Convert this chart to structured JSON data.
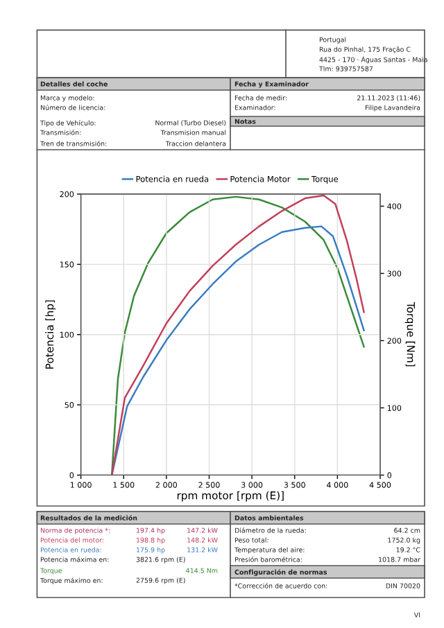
{
  "chart_data": {
    "type": "line",
    "xlabel": "rpm motor [rpm (E)]",
    "ylabel": "Potencia [hp]",
    "y2label": "Torque [Nm]",
    "xlim": [
      1000,
      4500
    ],
    "xticks": [
      {
        "value": 1000,
        "label": "1 000"
      },
      {
        "value": 1500,
        "label": "1 500"
      },
      {
        "value": 2000,
        "label": "2 000"
      },
      {
        "value": 2500,
        "label": "2 500"
      },
      {
        "value": 3000,
        "label": "3 000"
      },
      {
        "value": 3500,
        "label": "3 500"
      },
      {
        "value": 4000,
        "label": "4 000"
      },
      {
        "value": 4500,
        "label": "4 500"
      }
    ],
    "ylim": [
      0,
      200
    ],
    "yticks": [
      0,
      50,
      100,
      150,
      200
    ],
    "y2lim": [
      0,
      418
    ],
    "y2ticks": [
      0,
      100,
      200,
      300,
      400
    ],
    "grid": true,
    "legend": "top",
    "line_style": "solid",
    "series": [
      {
        "name": "Potencia en rueda",
        "color": "#3a7cc0",
        "x": [
          1362,
          1541,
          1730,
          2000,
          2271,
          2542,
          2811,
          3083,
          3352,
          3622,
          3813,
          3948,
          4110,
          4218,
          4310
        ],
        "values": [
          0,
          49,
          70,
          96,
          118,
          136,
          152,
          164,
          173,
          176,
          177,
          170,
          142,
          121,
          103
        ]
      },
      {
        "name": "Potencia Motor",
        "color": "#c0405a",
        "x": [
          1362,
          1514,
          1730,
          2000,
          2271,
          2542,
          2811,
          3083,
          3352,
          3622,
          3840,
          3975,
          4110,
          4218,
          4310
        ],
        "values": [
          0,
          55,
          78,
          108,
          131,
          149,
          164,
          177,
          188,
          197,
          199,
          193,
          167,
          141,
          116
        ]
      },
      {
        "name": "Torque",
        "color": "#3a8a3a",
        "axis": "y2",
        "x": [
          1362,
          1433,
          1514,
          1622,
          1784,
          2000,
          2271,
          2542,
          2811,
          3083,
          3352,
          3622,
          3838,
          4000,
          4164,
          4310
        ],
        "values": [
          0,
          143,
          212,
          267,
          315,
          360,
          391,
          410,
          414,
          410,
          398,
          377,
          350,
          308,
          246,
          191
        ]
      }
    ],
    "annotations": [
      "Portugal",
      "Rua do Pinhal, 175 Fração C",
      "4425 - 170 · Águas Santas - Maia",
      "Tlm: 939757587",
      "Detalles del coche",
      "Marca y modelo:",
      "Número de licencia:",
      "Tipo de Vehículo:",
      "Normal (Turbo Diesel)",
      "Transmisión:",
      "Transmision manual",
      "Tren de transmisión:",
      "Traccion delantera",
      "Fecha y Examinador",
      "Fecha de medir:",
      "21.11.2023 (11:46)",
      "Examinador:",
      "Filipe Lavandeira",
      "Notas",
      "Resultados de la medición",
      "Norma de potencia *:",
      "197.4 hp",
      "147.2 kW",
      "Potencia del motor:",
      "198.8 hp",
      "148.2 kW",
      "Potencia en rueda:",
      "175.9 hp",
      "131.2 kW",
      "Potencia máxima en:",
      "3821.6 rpm (E)",
      "Torque",
      "414.5 Nm",
      "Torque máximo en:",
      "2759.6 rpm (E)",
      "Datos ambientales",
      "Diámetro de la rueda:",
      "64.2 cm",
      "Peso total:",
      "1752.0 kg",
      "Temperatura del aire:",
      "19.2 °C",
      "Presión barométrica:",
      "1018.7 mbar",
      "Configuración de normas",
      "*Corrección de acuerdo con:",
      "DIN 70020",
      "VI"
    ]
  }
}
